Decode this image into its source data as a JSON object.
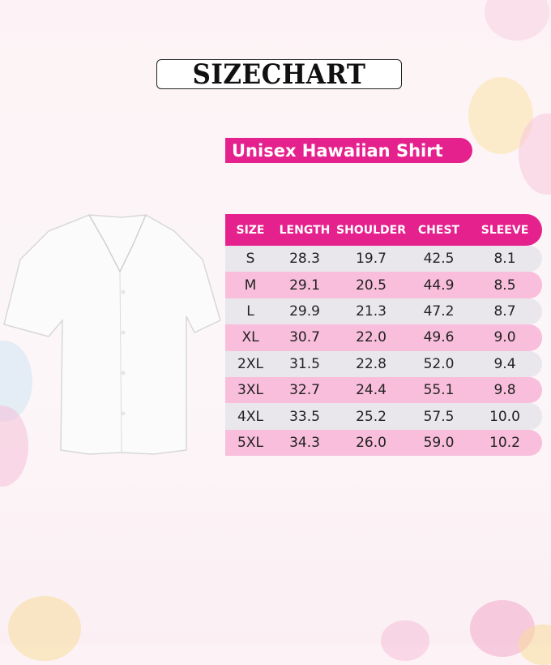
{
  "title": "SIZECHART",
  "subtitle": "Unisex Hawaiian Shirt",
  "colors": {
    "accent": "#e5218d",
    "row_light": "#e9e7ec",
    "row_pink": "#f8bedb"
  },
  "image": "white-hawaiian-shirt",
  "table": {
    "headers": [
      "SIZE",
      "LENGTH",
      "SHOULDER",
      "CHEST",
      "SLEEVE"
    ],
    "rows": [
      [
        "S",
        "28.3",
        "19.7",
        "42.5",
        "8.1"
      ],
      [
        "M",
        "29.1",
        "20.5",
        "44.9",
        "8.5"
      ],
      [
        "L",
        "29.9",
        "21.3",
        "47.2",
        "8.7"
      ],
      [
        "XL",
        "30.7",
        "22.0",
        "49.6",
        "9.0"
      ],
      [
        "2XL",
        "31.5",
        "22.8",
        "52.0",
        "9.4"
      ],
      [
        "3XL",
        "32.7",
        "24.4",
        "55.1",
        "9.8"
      ],
      [
        "4XL",
        "33.5",
        "25.2",
        "57.5",
        "10.0"
      ],
      [
        "5XL",
        "34.3",
        "26.0",
        "59.0",
        "10.2"
      ]
    ]
  }
}
